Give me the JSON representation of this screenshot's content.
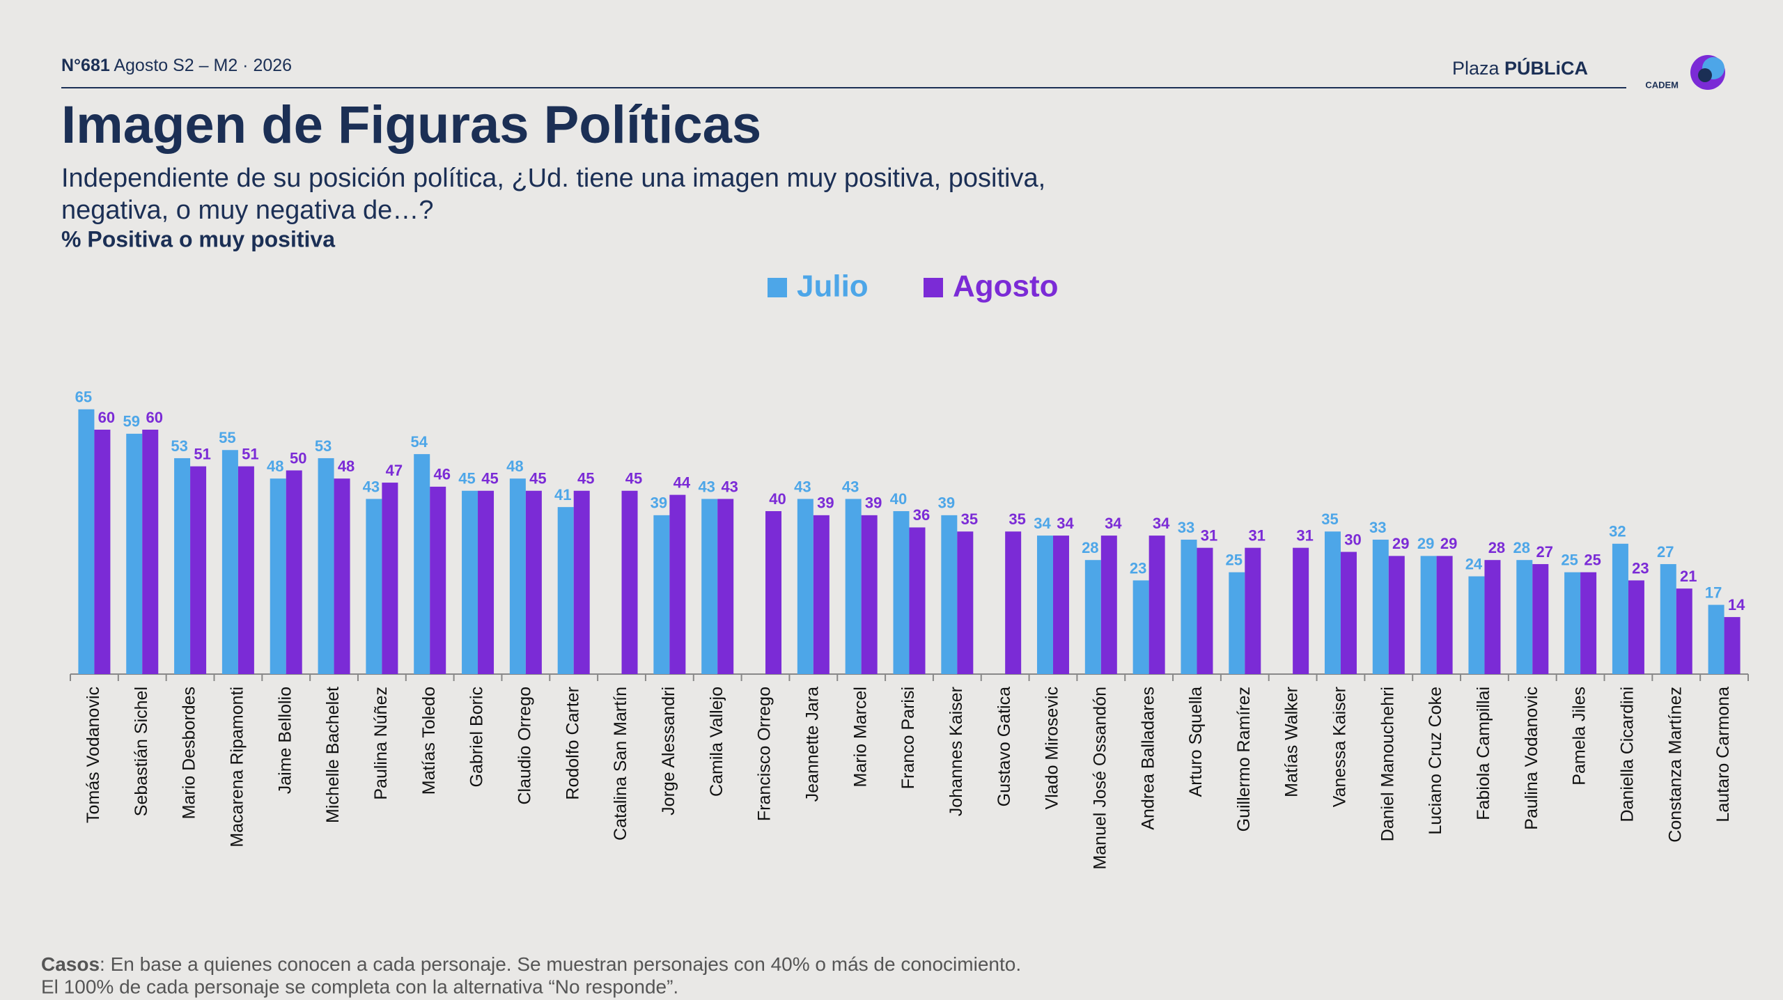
{
  "header": {
    "issue": "N°681",
    "period": "Agosto S2 – M2 · 2026",
    "brand_light": "Plaza",
    "brand_bold": "PÚBLiCA",
    "brand_sub": "CADEM"
  },
  "chart_data": {
    "type": "bar",
    "title": "Imagen de Figuras Políticas",
    "subtitle": [
      "Independiente de su posición política, ¿Ud. tiene una imagen muy positiva, positiva,",
      "negativa, o muy negativa de…?"
    ],
    "y_label": "% Positiva o muy positiva",
    "categories": [
      "Tomás Vodanovic",
      "Sebastián Sichel",
      "Mario Desbordes",
      "Macarena Ripamonti",
      "Jaime Bellolio",
      "Michelle Bachelet",
      "Paulina Núñez",
      "Matías Toledo",
      "Gabriel Boric",
      "Claudio Orrego",
      "Rodolfo Carter",
      "Catalina San Martín",
      "Jorge Alessandri",
      "Camila Vallejo",
      "Francisco Orrego",
      "Jeannette Jara",
      "Mario Marcel",
      "Franco Parisi",
      "Johannes Kaiser",
      "Gustavo Gatica",
      "Vlado Mirosevic",
      "Manuel José Ossandón",
      "Andrea Balladares",
      "Arturo Squella",
      "Guillermo Ramírez",
      "Matías Walker",
      "Vanessa Kaiser",
      "Daniel Manouchehri",
      "Luciano Cruz Coke",
      "Fabiola Campillai",
      "Paulina Vodanovic",
      "Pamela Jiles",
      "Daniella Cicardini",
      "Constanza Martínez",
      "Lautaro Carmona"
    ],
    "series": [
      {
        "name": "Julio",
        "color": "#4da6e8",
        "values": [
          65,
          59,
          53,
          55,
          48,
          53,
          43,
          54,
          45,
          48,
          41,
          null,
          39,
          43,
          null,
          43,
          43,
          40,
          39,
          null,
          34,
          28,
          23,
          33,
          25,
          null,
          35,
          33,
          29,
          24,
          28,
          25,
          32,
          27,
          17
        ]
      },
      {
        "name": "Agosto",
        "color": "#7b2bd6",
        "values": [
          60,
          60,
          51,
          51,
          50,
          48,
          47,
          46,
          45,
          45,
          45,
          45,
          44,
          43,
          40,
          39,
          39,
          36,
          35,
          35,
          34,
          34,
          34,
          31,
          31,
          31,
          30,
          29,
          29,
          28,
          27,
          25,
          23,
          21,
          14
        ]
      }
    ],
    "legend": "top"
  },
  "footer": {
    "note_bold": "Casos",
    "note_rest": ": En base a quienes conocen a cada personaje. Se muestran personajes con 40% o más de conocimiento.",
    "note_line2": "El 100% de cada personaje se completa con la alternativa “No responde”."
  }
}
